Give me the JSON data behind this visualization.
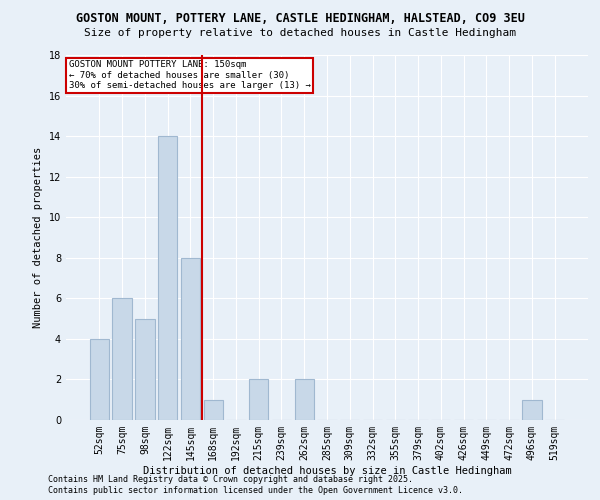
{
  "title1": "GOSTON MOUNT, POTTERY LANE, CASTLE HEDINGHAM, HALSTEAD, CO9 3EU",
  "title2": "Size of property relative to detached houses in Castle Hedingham",
  "xlabel": "Distribution of detached houses by size in Castle Hedingham",
  "ylabel": "Number of detached properties",
  "categories": [
    "52sqm",
    "75sqm",
    "98sqm",
    "122sqm",
    "145sqm",
    "168sqm",
    "192sqm",
    "215sqm",
    "239sqm",
    "262sqm",
    "285sqm",
    "309sqm",
    "332sqm",
    "355sqm",
    "379sqm",
    "402sqm",
    "426sqm",
    "449sqm",
    "472sqm",
    "496sqm",
    "519sqm"
  ],
  "values": [
    4,
    6,
    5,
    14,
    8,
    1,
    0,
    2,
    0,
    2,
    0,
    0,
    0,
    0,
    0,
    0,
    0,
    0,
    0,
    1,
    0
  ],
  "bar_color": "#c8d8e8",
  "bar_edge_color": "#a0b8d0",
  "background_color": "#e8f0f8",
  "grid_color": "#ffffff",
  "red_line_x": 4.5,
  "annotation_title": "GOSTON MOUNT POTTERY LANE: 150sqm",
  "annotation_line1": "← 70% of detached houses are smaller (30)",
  "annotation_line2": "30% of semi-detached houses are larger (13) →",
  "annotation_box_color": "#ffffff",
  "annotation_box_edge": "#cc0000",
  "red_line_color": "#cc0000",
  "ylim": [
    0,
    18
  ],
  "yticks": [
    0,
    2,
    4,
    6,
    8,
    10,
    12,
    14,
    16,
    18
  ],
  "footer1": "Contains HM Land Registry data © Crown copyright and database right 2025.",
  "footer2": "Contains public sector information licensed under the Open Government Licence v3.0."
}
